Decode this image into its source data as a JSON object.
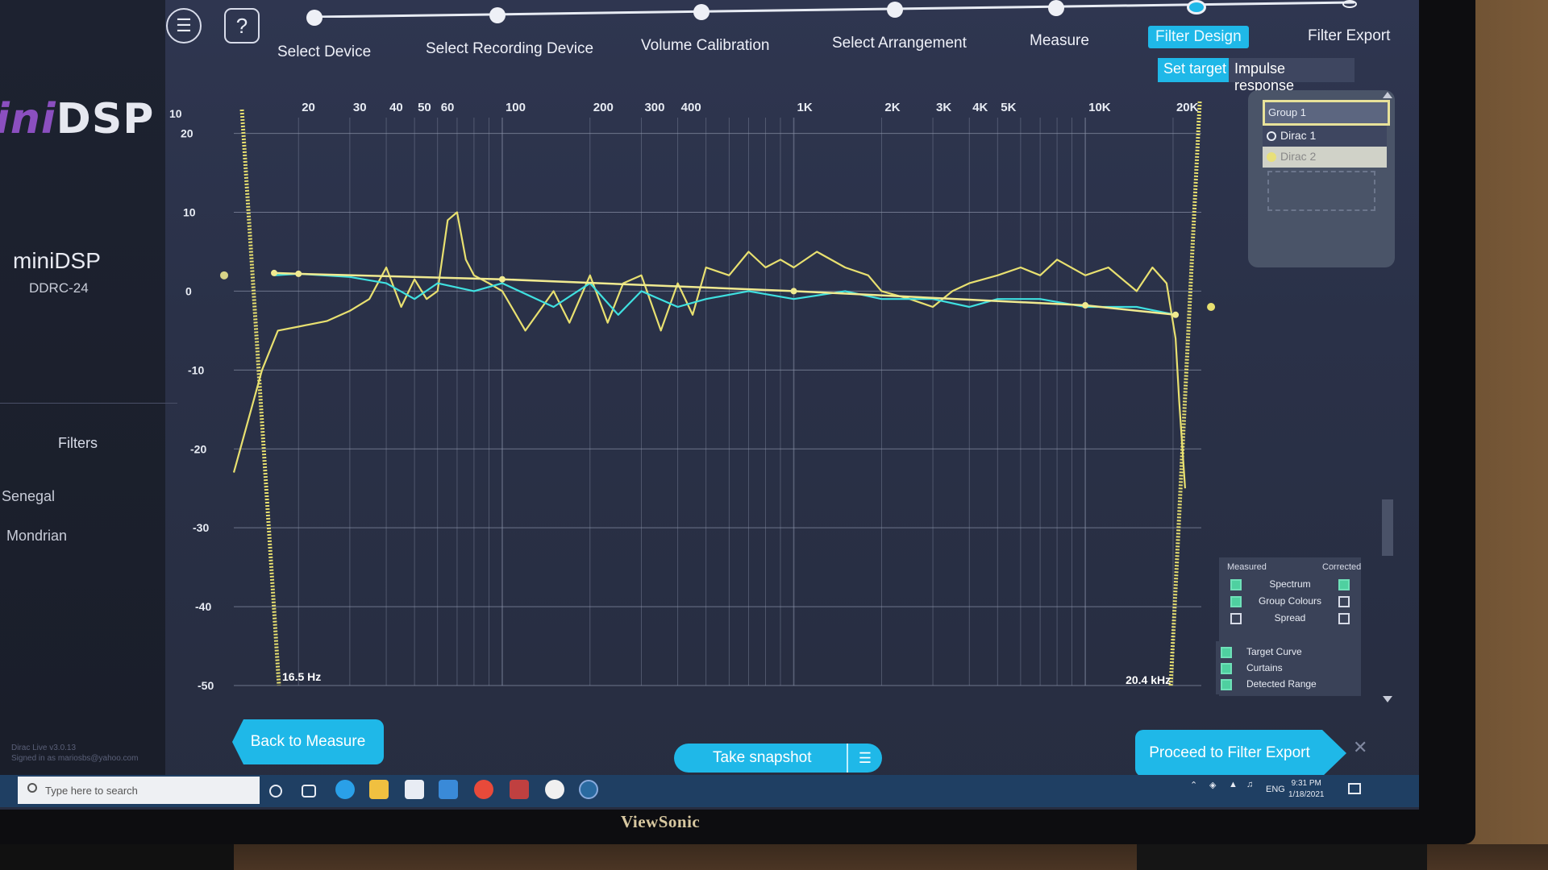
{
  "app": {
    "brand_logo": "miniDSP",
    "device_name": "miniDSP",
    "device_model": "DDRC-24",
    "version_line1": "Dirac Live v3.0.13",
    "version_line2": "Signed in as mariosbs@yahoo.com"
  },
  "sidebar": {
    "section_label": "Filters",
    "items": [
      {
        "label": "Senegal"
      },
      {
        "label": "Mondrian"
      }
    ]
  },
  "header": {
    "menu_icon": "hamburger-icon",
    "help_icon": "help-icon",
    "help_label": "?",
    "steps": [
      {
        "label": "Select Device",
        "active": false
      },
      {
        "label": "Select Recording Device",
        "active": false
      },
      {
        "label": "Volume Calibration",
        "active": false
      },
      {
        "label": "Select Arrangement",
        "active": false
      },
      {
        "label": "Measure",
        "active": false
      },
      {
        "label": "Filter Design",
        "active": true
      },
      {
        "label": "Filter Export",
        "active": false
      }
    ],
    "subtabs": [
      {
        "label": "Set target",
        "active": true
      },
      {
        "label": "Impulse response",
        "active": false
      }
    ]
  },
  "chart_data": {
    "type": "line",
    "xscale": "log",
    "x_tick_labels": [
      "20",
      "30",
      "40",
      "50",
      "60",
      "100",
      "200",
      "300",
      "400",
      "1K",
      "2K",
      "3K",
      "4K",
      "5K",
      "10K",
      "20K"
    ],
    "x_ticks_hz": [
      20,
      30,
      40,
      50,
      60,
      100,
      200,
      300,
      400,
      1000,
      2000,
      3000,
      4000,
      5000,
      10000,
      20000
    ],
    "y_tick_labels": [
      "20",
      "10",
      "0",
      "-10",
      "-20",
      "-30",
      "-40",
      "-50"
    ],
    "y_ticks": [
      20,
      10,
      0,
      -10,
      -20,
      -30,
      -40,
      -50
    ],
    "y_top_label": "10",
    "xlim": [
      12,
      25000
    ],
    "ylim": [
      -50,
      22
    ],
    "grid": true,
    "low_curtain_label": "16.5 Hz",
    "high_curtain_label": "20.4 kHz",
    "low_curtain_hz": 16.5,
    "high_curtain_hz": 20400,
    "series": [
      {
        "color": "#e8e070",
        "role": "measured",
        "x": [
          12,
          15,
          17,
          20,
          25,
          30,
          35,
          40,
          45,
          50,
          55,
          60,
          65,
          70,
          75,
          80,
          90,
          100,
          120,
          150,
          170,
          200,
          230,
          260,
          300,
          350,
          400,
          450,
          500,
          600,
          700,
          800,
          900,
          1000,
          1200,
          1500,
          1800,
          2000,
          2500,
          3000,
          3500,
          4000,
          5000,
          6000,
          7000,
          8000,
          10000,
          12000,
          15000,
          17000,
          19000,
          20400,
          21000,
          22000
        ],
        "y": [
          -23,
          -10,
          -5,
          -4.5,
          -3.8,
          -2.5,
          -1,
          3,
          -2,
          1.5,
          -1,
          0,
          9,
          10,
          4,
          2,
          1,
          0,
          -5,
          0,
          -4,
          2,
          -4,
          1,
          2,
          -5,
          1,
          -3,
          3,
          2,
          5,
          3,
          4,
          3,
          5,
          3,
          2,
          0,
          -1,
          -2,
          0,
          1,
          2,
          3,
          2,
          4,
          2,
          3,
          0,
          3,
          1,
          -6,
          -14,
          -25
        ]
      },
      {
        "color": "#3fe0e0",
        "role": "corrected",
        "x": [
          16.5,
          20,
          30,
          40,
          50,
          60,
          80,
          100,
          150,
          200,
          250,
          300,
          400,
          500,
          700,
          1000,
          1500,
          2000,
          3000,
          4000,
          5000,
          7000,
          10000,
          15000,
          20400
        ],
        "y": [
          2,
          2.2,
          1.8,
          1,
          -1,
          1,
          0,
          1,
          -2,
          1,
          -3,
          0,
          -2,
          -1,
          0,
          -1,
          0,
          -1,
          -1,
          -2,
          -1,
          -1,
          -2,
          -2,
          -3
        ]
      },
      {
        "color": "#f0ea90",
        "role": "target",
        "x": [
          16.5,
          20,
          100,
          1000,
          10000,
          20400
        ],
        "y": [
          2.3,
          2.2,
          1.5,
          0,
          -1.8,
          -3
        ]
      }
    ]
  },
  "group_panel": {
    "title": "Group 1",
    "items": [
      {
        "label": "Dirac 1"
      },
      {
        "label": "Dirac 2"
      }
    ]
  },
  "display_options": {
    "measured_label": "Measured",
    "corrected_label": "Corrected",
    "rows": [
      {
        "label": "Spectrum",
        "measured": true,
        "corrected": true
      },
      {
        "label": "Group Colours",
        "measured": true,
        "corrected": false
      },
      {
        "label": "Spread",
        "measured": false,
        "corrected": false
      }
    ],
    "extras": [
      {
        "label": "Target Curve",
        "checked": true
      },
      {
        "label": "Curtains",
        "checked": true
      },
      {
        "label": "Detected Range",
        "checked": true
      }
    ]
  },
  "buttons": {
    "back": "Back to Measure",
    "snapshot": "Take snapshot",
    "next": "Proceed to Filter Export"
  },
  "taskbar": {
    "search_placeholder": "Type here to search",
    "lang": "ENG",
    "time": "9:31 PM",
    "date": "1/18/2021"
  },
  "monitor_brand": "ViewSonic",
  "colors": {
    "accent": "#1fb8e8",
    "measured": "#e8e070",
    "corrected": "#3fe0e0",
    "curtain": "#e8e070"
  }
}
